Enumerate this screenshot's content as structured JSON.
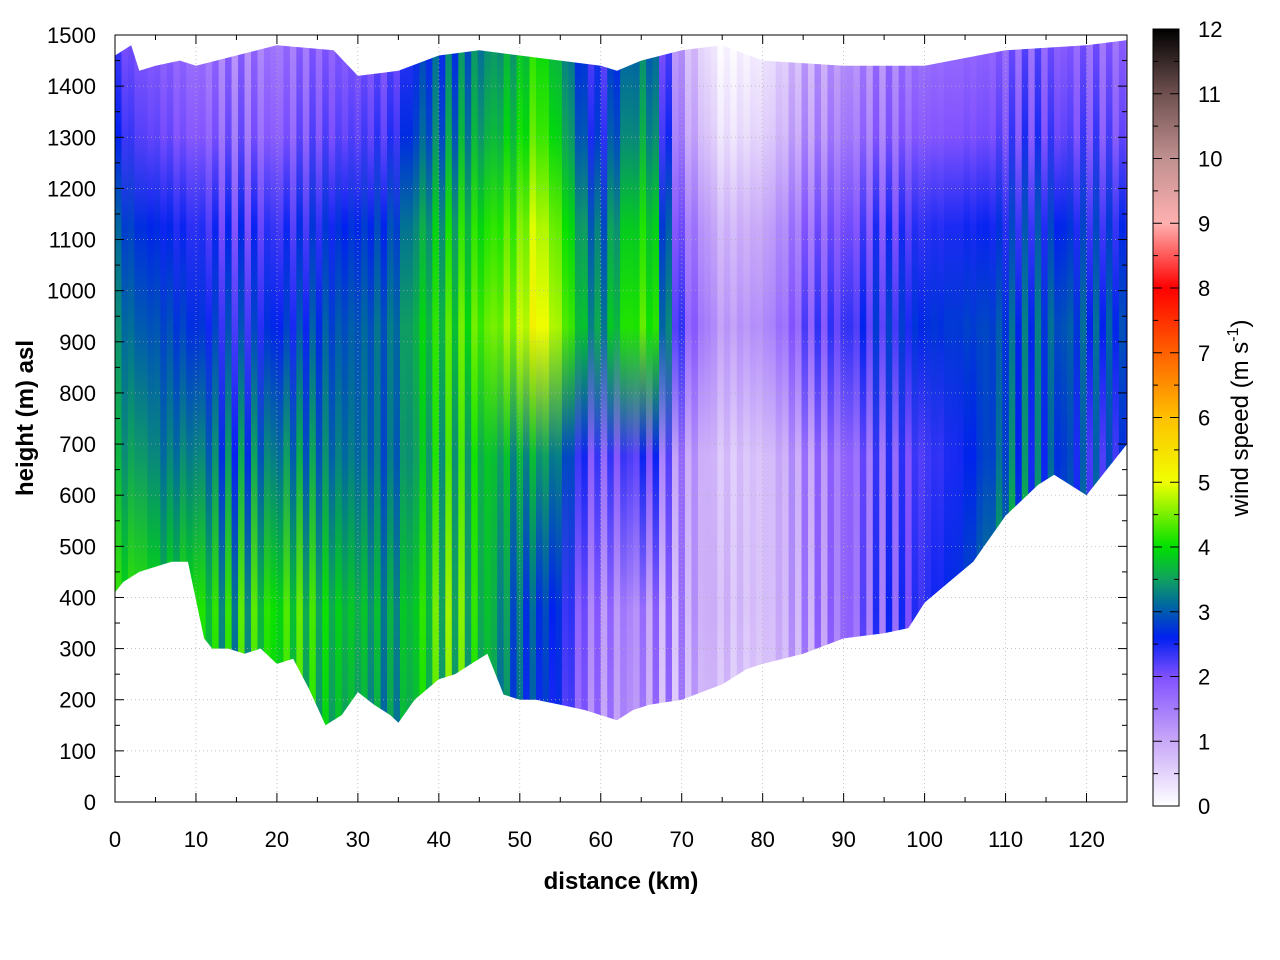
{
  "chart_data": {
    "type": "heatmap",
    "title": "",
    "xlabel": "distance (km)",
    "ylabel": "height (m) asl",
    "colorbar_label": "wind speed (m s",
    "colorbar_label_superscript": "-1",
    "colorbar_label_close": ")",
    "xlim": [
      0,
      125
    ],
    "ylim": [
      0,
      1500
    ],
    "clim": [
      0,
      12
    ],
    "xticks": [
      "0",
      "10",
      "20",
      "30",
      "40",
      "50",
      "60",
      "70",
      "80",
      "90",
      "100",
      "110",
      "120"
    ],
    "yticks": [
      "0",
      "100",
      "200",
      "300",
      "400",
      "500",
      "600",
      "700",
      "800",
      "900",
      "1000",
      "1100",
      "1200",
      "1300",
      "1400",
      "1500"
    ],
    "cticks": [
      "0",
      "1",
      "2",
      "3",
      "4",
      "5",
      "6",
      "7",
      "8",
      "9",
      "10",
      "11",
      "12"
    ],
    "grid": true,
    "colormap": [
      {
        "value": 0,
        "color": "#ffffff"
      },
      {
        "value": 1,
        "color": "#c8a8f8"
      },
      {
        "value": 2,
        "color": "#8050ff"
      },
      {
        "value": 2.6,
        "color": "#0020f0"
      },
      {
        "value": 3.1,
        "color": "#0068a0"
      },
      {
        "value": 3.5,
        "color": "#10a060"
      },
      {
        "value": 4,
        "color": "#00e000"
      },
      {
        "value": 5,
        "color": "#f0ff00"
      },
      {
        "value": 6,
        "color": "#ffc000"
      },
      {
        "value": 7,
        "color": "#ff6000"
      },
      {
        "value": 8,
        "color": "#ff0000"
      },
      {
        "value": 9,
        "color": "#ffb0b0"
      },
      {
        "value": 10,
        "color": "#c09090"
      },
      {
        "value": 11,
        "color": "#705050"
      },
      {
        "value": 12,
        "color": "#000000"
      }
    ],
    "terrain_bottom": {
      "x": [
        0,
        1,
        3,
        5,
        7,
        9,
        11,
        12,
        14,
        16,
        18,
        20,
        22,
        24,
        26,
        28,
        30,
        32,
        34,
        35,
        37,
        40,
        42,
        44,
        46,
        48,
        50,
        52,
        55,
        58,
        60,
        62,
        64,
        66,
        68,
        70,
        75,
        78,
        80,
        85,
        90,
        95,
        98,
        100,
        103,
        106,
        110,
        114,
        116,
        118,
        120,
        122,
        125
      ],
      "y": [
        410,
        430,
        450,
        460,
        470,
        470,
        320,
        300,
        300,
        290,
        300,
        270,
        280,
        220,
        150,
        170,
        215,
        190,
        170,
        155,
        200,
        240,
        250,
        270,
        290,
        210,
        200,
        200,
        190,
        180,
        170,
        160,
        180,
        190,
        195,
        200,
        230,
        260,
        270,
        290,
        320,
        330,
        340,
        390,
        430,
        470,
        560,
        620,
        640,
        620,
        600,
        640,
        700
      ]
    },
    "terrain_top": {
      "x": [
        0,
        2,
        3,
        5,
        8,
        10,
        15,
        20,
        27,
        30,
        35,
        40,
        45,
        50,
        55,
        60,
        62,
        65,
        70,
        75,
        80,
        90,
        100,
        110,
        120,
        125
      ],
      "y": [
        1460,
        1480,
        1430,
        1440,
        1450,
        1440,
        1460,
        1480,
        1470,
        1420,
        1430,
        1460,
        1470,
        1460,
        1450,
        1440,
        1430,
        1450,
        1470,
        1480,
        1450,
        1440,
        1440,
        1470,
        1480,
        1490
      ]
    },
    "speed_profile": {
      "x": [
        0,
        3,
        6,
        10,
        14,
        18,
        22,
        26,
        30,
        34,
        38,
        42,
        46,
        50,
        52,
        55,
        58,
        60,
        63,
        66,
        70,
        75,
        80,
        85,
        90,
        95,
        100,
        105,
        110,
        115,
        120,
        125
      ],
      "low_level": [
        3.8,
        4.0,
        3.6,
        3.9,
        3.5,
        3.8,
        3.9,
        3.6,
        3.5,
        3.2,
        3.8,
        3.9,
        3.5,
        2.8,
        2.7,
        2.4,
        1.6,
        1.3,
        1.2,
        1.2,
        1.0,
        0.6,
        0.5,
        1.0,
        1.5,
        1.8,
        2.2,
        2.6,
        3.4,
        3.0,
        2.7,
        2.5
      ],
      "upper_level": [
        3.0,
        2.7,
        2.6,
        2.4,
        2.3,
        2.3,
        2.4,
        2.6,
        2.7,
        2.8,
        3.5,
        3.8,
        4.1,
        4.4,
        4.9,
        4.3,
        3.3,
        3.0,
        3.8,
        4.0,
        1.8,
        0.8,
        1.0,
        1.7,
        2.0,
        2.2,
        2.4,
        2.5,
        2.6,
        2.7,
        2.6,
        2.5
      ]
    }
  }
}
